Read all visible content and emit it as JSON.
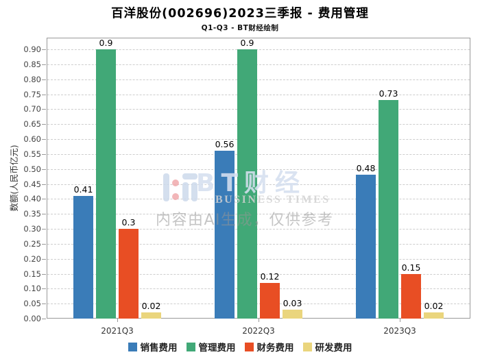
{
  "header": {
    "title": "百洋股份(002696)2023三季报 - 费用管理",
    "subtitle": "Q1-Q3 - BT财经绘制"
  },
  "chart_data": {
    "type": "bar",
    "title": "百洋股份(002696)2023三季报 - 费用管理",
    "subtitle": "Q1-Q3 - BT财经绘制",
    "ylabel": "数额(人民币亿元)",
    "xlabel": "",
    "categories": [
      "2021Q3",
      "2022Q3",
      "2023Q3"
    ],
    "series": [
      {
        "name": "销售费用",
        "color": "#3a7cb8",
        "values": [
          0.41,
          0.56,
          0.48
        ],
        "labels": [
          "0.41",
          "0.56",
          "0.48"
        ]
      },
      {
        "name": "管理费用",
        "color": "#41a877",
        "values": [
          0.9,
          0.9,
          0.73
        ],
        "labels": [
          "0.9",
          "0.9",
          "0.73"
        ]
      },
      {
        "name": "财务费用",
        "color": "#e84e24",
        "values": [
          0.3,
          0.12,
          0.15
        ],
        "labels": [
          "0.3",
          "0.12",
          "0.15"
        ]
      },
      {
        "name": "研发费用",
        "color": "#ead57d",
        "values": [
          0.02,
          0.03,
          0.02
        ],
        "labels": [
          "0.02",
          "0.03",
          "0.02"
        ]
      }
    ],
    "ylim": [
      0,
      0.9
    ],
    "ystep": 0.05,
    "ytick_format": "2dp",
    "grid": "horizontal-dashed",
    "legend_position": "bottom"
  },
  "watermark": {
    "brand": "BT财经",
    "brand_sub": "BUSINESS TIMES",
    "disclaimer": "内容由AI生成，仅供参考",
    "logo_color": "#cdd9eb",
    "logo_dot_color": "#f0a9ac"
  }
}
